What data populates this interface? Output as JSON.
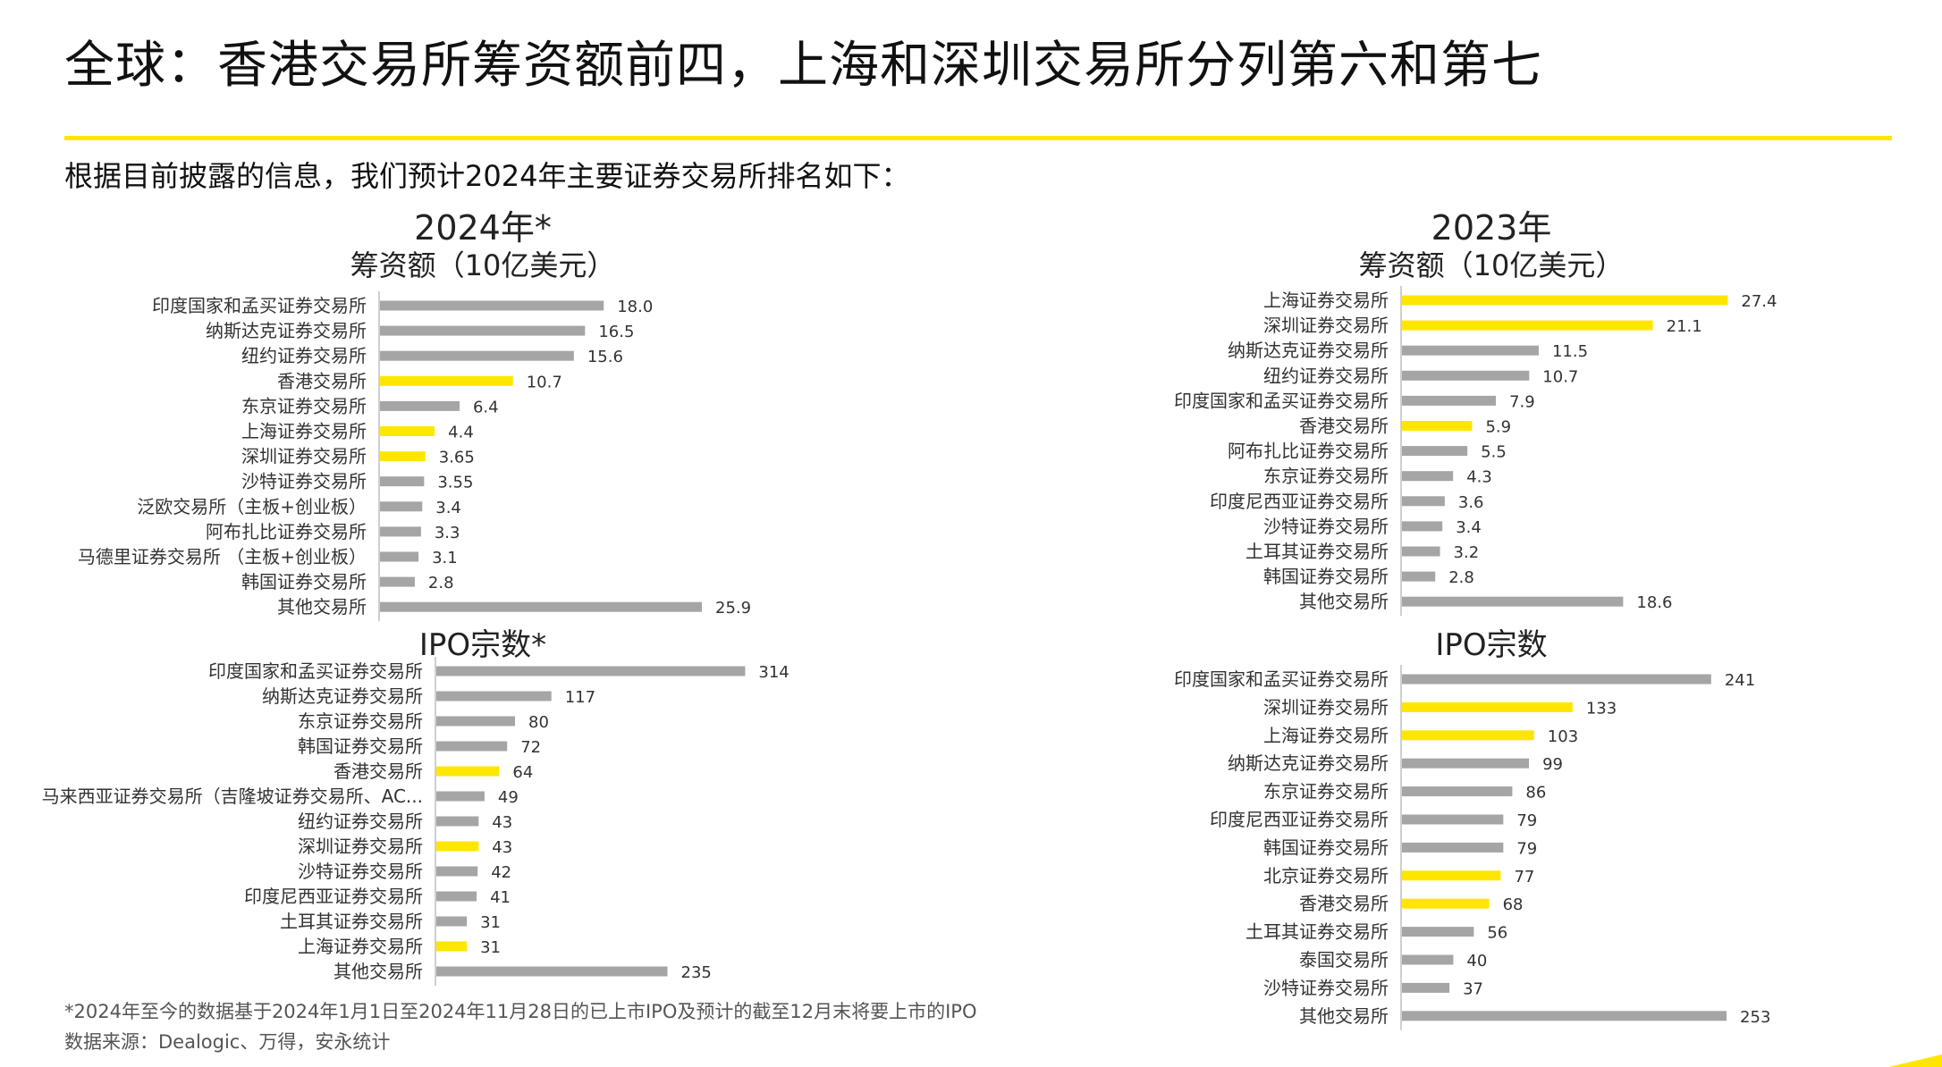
{
  "page": {
    "title": "全球：香港交易所筹资额前四，上海和深圳交易所分列第六和第七",
    "subtitle": "根据目前披露的信息，我们预计2024年主要证券交易所排名如下：",
    "footnote": "*2024年至今的数据基于2024年1月1日至2024年11月28日的已上市IPO及预计的截至12月末将要上市的IPO",
    "source": "数据来源：Dealogic、万得，安永统计"
  },
  "colors": {
    "highlight": "#FFE600",
    "normal": "#A5A5A5",
    "axis": "#BFBFBF"
  },
  "chart_data": [
    {
      "id": "funds-2024",
      "type": "bar",
      "orientation": "horizontal",
      "title": "2024年*",
      "subtitle": "筹资额（10亿美元）",
      "categories": [
        "印度国家和孟买证券交易所",
        "纳斯达克证券交易所",
        "纽约证券交易所",
        "香港交易所",
        "东京证券交易所",
        "上海证券交易所",
        "深圳证券交易所",
        "沙特证券交易所",
        "泛欧交易所（主板+创业板）",
        "阿布扎比证券交易所",
        "马德里证券交易所 （主板+创业板）",
        "韩国证券交易所",
        "其他交易所"
      ],
      "values": [
        18.0,
        16.5,
        15.6,
        10.7,
        6.4,
        4.4,
        3.65,
        3.55,
        3.4,
        3.3,
        3.1,
        2.8,
        25.9
      ],
      "value_labels": [
        "18.0",
        "16.5",
        "15.6",
        "10.7",
        "6.4",
        "4.4",
        "3.65",
        "3.55",
        "3.4",
        "3.3",
        "3.1",
        "2.8",
        "25.9"
      ],
      "highlight": [
        false,
        false,
        false,
        true,
        false,
        true,
        true,
        false,
        false,
        false,
        false,
        false,
        false
      ]
    },
    {
      "id": "ipo-2024",
      "type": "bar",
      "orientation": "horizontal",
      "title": "IPO宗数*",
      "subtitle": "",
      "categories": [
        "印度国家和孟买证券交易所",
        "纳斯达克证券交易所",
        "东京证券交易所",
        "韩国证券交易所",
        "香港交易所",
        "马来西亚证券交易所（吉隆坡证券交易所、AC...",
        "纽约证券交易所",
        "深圳证券交易所",
        "沙特证券交易所",
        "印度尼西亚证券交易所",
        "土耳其证券交易所",
        "上海证券交易所",
        "其他交易所"
      ],
      "values": [
        314,
        117,
        80,
        72,
        64,
        49,
        43,
        43,
        42,
        41,
        31,
        31,
        235
      ],
      "value_labels": [
        "314",
        "117",
        "80",
        "72",
        "64",
        "49",
        "43",
        "43",
        "42",
        "41",
        "31",
        "31",
        "235"
      ],
      "highlight": [
        false,
        false,
        false,
        false,
        true,
        false,
        false,
        true,
        false,
        false,
        false,
        true,
        false
      ]
    },
    {
      "id": "funds-2023",
      "type": "bar",
      "orientation": "horizontal",
      "title": "2023年",
      "subtitle": "筹资额（10亿美元）",
      "categories": [
        "上海证券交易所",
        "深圳证券交易所",
        "纳斯达克证券交易所",
        "纽约证券交易所",
        "印度国家和孟买证券交易所",
        "香港交易所",
        "阿布扎比证券交易所",
        "东京证券交易所",
        "印度尼西亚证券交易所",
        "沙特证券交易所",
        "土耳其证券交易所",
        "韩国证券交易所",
        "其他交易所"
      ],
      "values": [
        27.4,
        21.1,
        11.5,
        10.7,
        7.9,
        5.9,
        5.5,
        4.3,
        3.6,
        3.4,
        3.2,
        2.8,
        18.6
      ],
      "value_labels": [
        "27.4",
        "21.1",
        "11.5",
        "10.7",
        "7.9",
        "5.9",
        "5.5",
        "4.3",
        "3.6",
        "3.4",
        "3.2",
        "2.8",
        "18.6"
      ],
      "highlight": [
        true,
        true,
        false,
        false,
        false,
        true,
        false,
        false,
        false,
        false,
        false,
        false,
        false
      ]
    },
    {
      "id": "ipo-2023",
      "type": "bar",
      "orientation": "horizontal",
      "title": "IPO宗数",
      "subtitle": "",
      "categories": [
        "印度国家和孟买证券交易所",
        "深圳证券交易所",
        "上海证券交易所",
        "纳斯达克证券交易所",
        "东京证券交易所",
        "印度尼西亚证券交易所",
        "韩国证券交易所",
        "北京证券交易所",
        "香港交易所",
        "土耳其证券交易所",
        "泰国交易所",
        "沙特证券交易所",
        "其他交易所"
      ],
      "values": [
        241,
        133,
        103,
        99,
        86,
        79,
        79,
        77,
        68,
        56,
        40,
        37,
        253
      ],
      "value_labels": [
        "241",
        "133",
        "103",
        "99",
        "86",
        "79",
        "79",
        "77",
        "68",
        "56",
        "40",
        "37",
        "253"
      ],
      "highlight": [
        false,
        true,
        true,
        false,
        false,
        false,
        false,
        true,
        true,
        false,
        false,
        false,
        false
      ]
    }
  ]
}
